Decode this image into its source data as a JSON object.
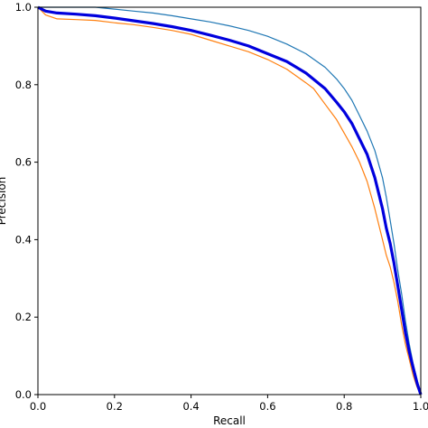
{
  "chart_data": {
    "type": "line",
    "xlabel": "Recall",
    "ylabel": "Precision",
    "xlim": [
      0.0,
      1.0
    ],
    "ylim": [
      0.0,
      1.0
    ],
    "xticks": [
      "0.0",
      "0.2",
      "0.4",
      "0.6",
      "0.8",
      "1.0"
    ],
    "yticks": [
      "0.0",
      "0.2",
      "0.4",
      "0.6",
      "0.8",
      "1.0"
    ],
    "grid": false,
    "legend": "none",
    "series": [
      {
        "color": "#1f77b4",
        "width": 1.2,
        "x": [
          0.0,
          0.05,
          0.1,
          0.15,
          0.2,
          0.25,
          0.3,
          0.35,
          0.4,
          0.45,
          0.5,
          0.55,
          0.6,
          0.65,
          0.7,
          0.75,
          0.78,
          0.8,
          0.82,
          0.84,
          0.86,
          0.88,
          0.9,
          0.91,
          0.92,
          0.93,
          0.94,
          0.95,
          0.96,
          0.97,
          0.98,
          0.99,
          1.0
        ],
        "y": [
          1.0,
          1.0,
          1.0,
          1.0,
          0.995,
          0.99,
          0.985,
          0.978,
          0.97,
          0.962,
          0.952,
          0.94,
          0.925,
          0.905,
          0.88,
          0.845,
          0.815,
          0.79,
          0.76,
          0.72,
          0.68,
          0.63,
          0.56,
          0.51,
          0.45,
          0.39,
          0.32,
          0.26,
          0.19,
          0.13,
          0.08,
          0.04,
          0.0
        ]
      },
      {
        "color": "#ff7f0e",
        "width": 1.2,
        "x": [
          0.0,
          0.02,
          0.05,
          0.1,
          0.15,
          0.2,
          0.25,
          0.3,
          0.35,
          0.4,
          0.45,
          0.5,
          0.55,
          0.6,
          0.65,
          0.7,
          0.72,
          0.75,
          0.78,
          0.8,
          0.82,
          0.84,
          0.86,
          0.88,
          0.9,
          0.91,
          0.92,
          0.93,
          0.94,
          0.95,
          0.96,
          0.97,
          0.98,
          0.99,
          1.0
        ],
        "y": [
          1.0,
          0.98,
          0.97,
          0.968,
          0.966,
          0.96,
          0.955,
          0.948,
          0.94,
          0.93,
          0.915,
          0.9,
          0.885,
          0.865,
          0.84,
          0.805,
          0.79,
          0.75,
          0.71,
          0.675,
          0.64,
          0.6,
          0.55,
          0.48,
          0.4,
          0.36,
          0.33,
          0.29,
          0.24,
          0.18,
          0.13,
          0.09,
          0.05,
          0.02,
          0.0
        ]
      },
      {
        "color": "#0000dd",
        "width": 3.2,
        "x": [
          0.0,
          0.02,
          0.05,
          0.1,
          0.15,
          0.2,
          0.25,
          0.3,
          0.35,
          0.4,
          0.45,
          0.5,
          0.55,
          0.6,
          0.65,
          0.7,
          0.75,
          0.78,
          0.8,
          0.82,
          0.84,
          0.86,
          0.88,
          0.9,
          0.91,
          0.92,
          0.93,
          0.94,
          0.95,
          0.96,
          0.97,
          0.98,
          0.99,
          1.0
        ],
        "y": [
          1.0,
          0.99,
          0.985,
          0.982,
          0.978,
          0.972,
          0.965,
          0.958,
          0.95,
          0.94,
          0.928,
          0.915,
          0.9,
          0.88,
          0.86,
          0.83,
          0.79,
          0.755,
          0.73,
          0.7,
          0.66,
          0.62,
          0.56,
          0.48,
          0.43,
          0.39,
          0.34,
          0.28,
          0.22,
          0.16,
          0.11,
          0.07,
          0.03,
          0.0
        ]
      }
    ]
  }
}
